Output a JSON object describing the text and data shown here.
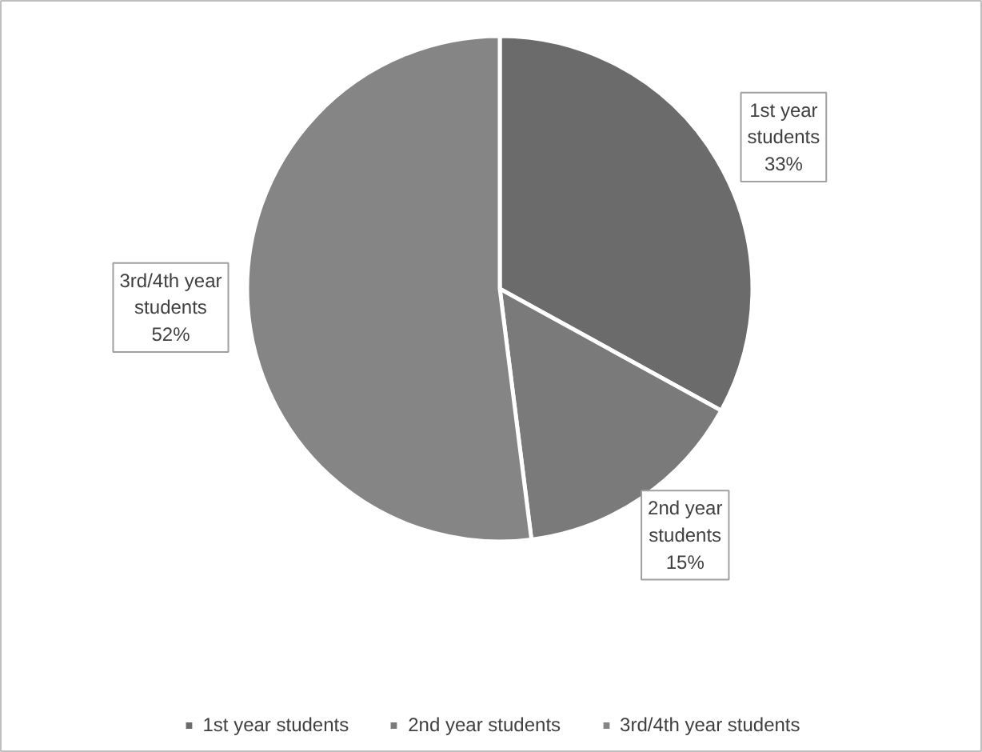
{
  "chart_data": {
    "type": "pie",
    "categories": [
      "1st year students",
      "2nd year students",
      "3rd/4th year students"
    ],
    "values": [
      33,
      15,
      52
    ],
    "colors": [
      "#6b6b6b",
      "#7a7a7a",
      "#858585"
    ],
    "value_labels": [
      "33%",
      "15%",
      "52%"
    ],
    "legend": "bottom"
  }
}
